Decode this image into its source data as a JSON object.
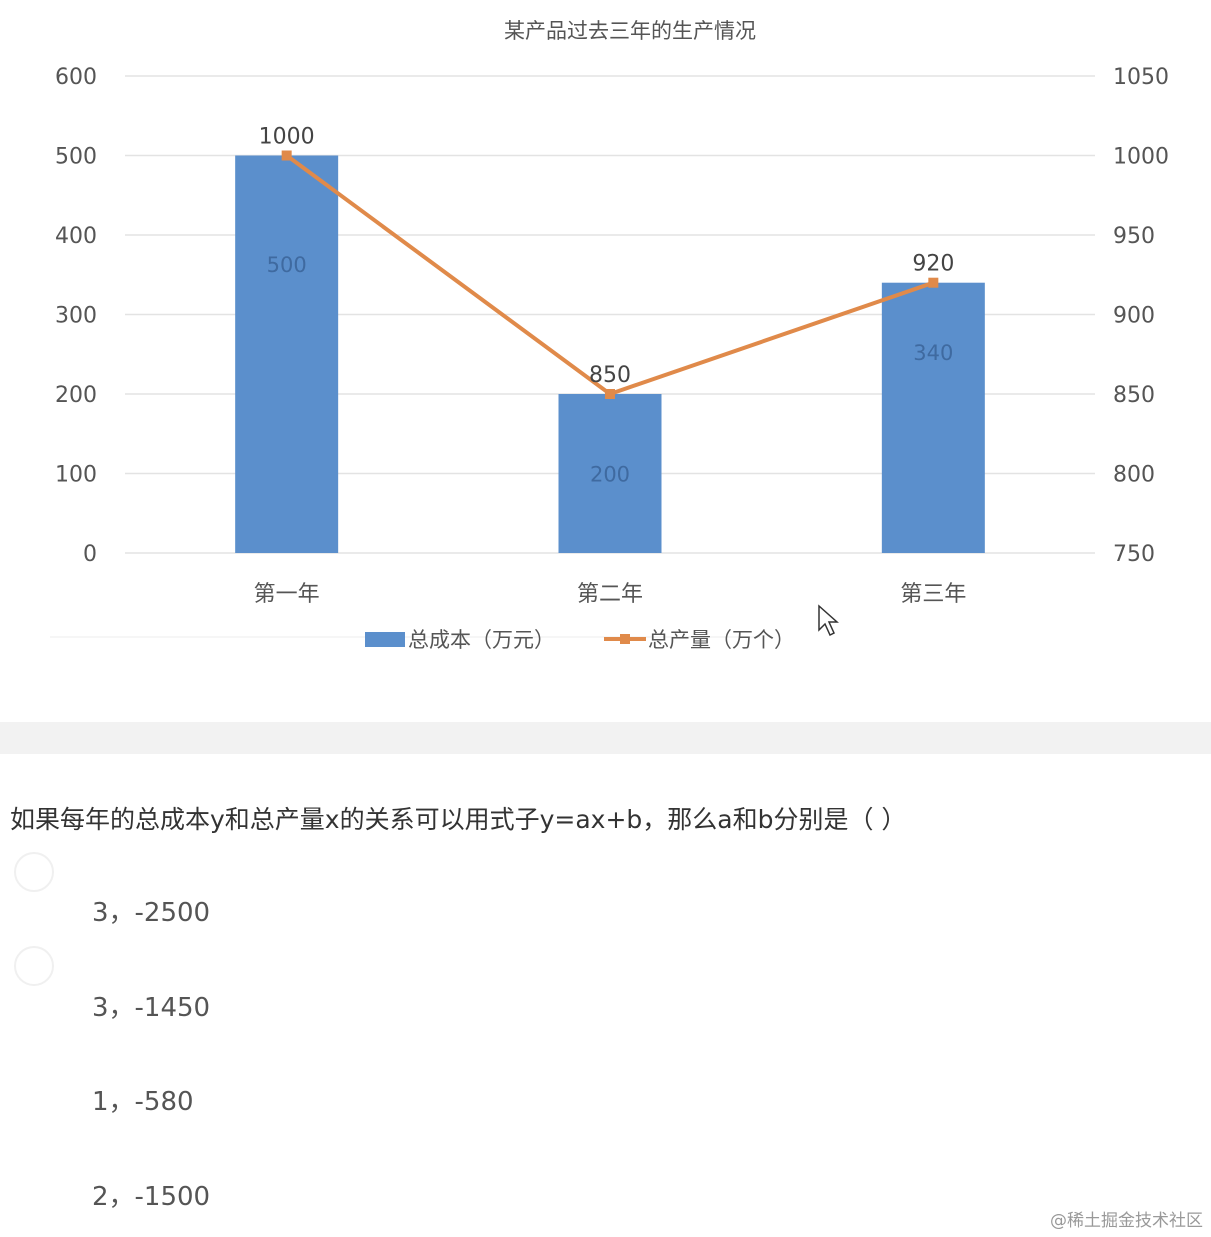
{
  "chart_data": {
    "type": "bar+line",
    "title": "某产品过去三年的生产情况",
    "categories": [
      "第一年",
      "第二年",
      "第三年"
    ],
    "series": [
      {
        "name": "总成本（万元）",
        "type": "bar",
        "axis": "left",
        "values": [
          500,
          200,
          340
        ],
        "color": "#5b8fcc"
      },
      {
        "name": "总产量（万个）",
        "type": "line",
        "axis": "right",
        "values": [
          1000,
          850,
          920
        ],
        "color": "#e08a4a"
      }
    ],
    "bar_labels": [
      "500",
      "200",
      "340"
    ],
    "line_labels": [
      "1000",
      "850",
      "920"
    ],
    "y_left": {
      "range": [
        0,
        600
      ],
      "ticks": [
        "0",
        "100",
        "200",
        "300",
        "400",
        "500",
        "600"
      ]
    },
    "y_right": {
      "range": [
        750,
        1050
      ],
      "ticks": [
        "750",
        "800",
        "850",
        "900",
        "950",
        "1000",
        "1050"
      ]
    },
    "grid": true,
    "legend": "bottom"
  },
  "question": {
    "text": "如果每年的总成本y和总产量x的关系可以用式子y=ax+b，那么a和b分别是（   ）",
    "options": [
      "3，-2500",
      "3，-1450",
      "1，-580",
      "2，-1500"
    ]
  },
  "watermark": "@稀土掘金技术社区"
}
